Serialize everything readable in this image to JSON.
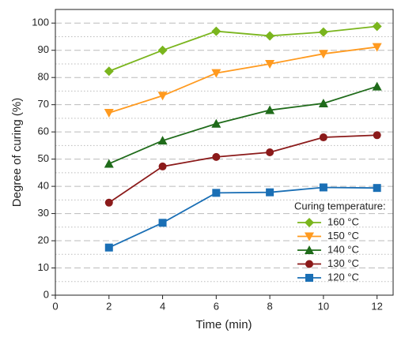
{
  "chart_data": {
    "type": "line",
    "x_label": "Time (min)",
    "y_label": "Degree of curing (%)",
    "x": [
      2,
      4,
      6,
      8,
      10,
      12
    ],
    "xlim": [
      0,
      12.6
    ],
    "xticks": [
      0,
      2,
      4,
      6,
      8,
      10,
      12
    ],
    "ylim": [
      0,
      105
    ],
    "yticks": [
      0,
      10,
      20,
      30,
      40,
      50,
      60,
      70,
      80,
      90,
      100
    ],
    "y_minor_ticks": [
      5,
      15,
      25,
      35,
      45,
      55,
      65,
      75,
      85,
      95
    ],
    "grid": true,
    "legend_title": "Curing temperature:",
    "legend_position": "lower-right",
    "series": [
      {
        "name": "160 °C",
        "color": "#7ab51d",
        "marker": "diamond",
        "values": [
          82.3,
          90,
          97,
          95.3,
          96.7,
          98.8
        ]
      },
      {
        "name": "150 °C",
        "color": "#ff9a1f",
        "marker": "triangle-down",
        "values": [
          67,
          73.3,
          81.6,
          85,
          88.7,
          91.2
        ]
      },
      {
        "name": "140 °C",
        "color": "#1f6b1a",
        "marker": "triangle-up",
        "values": [
          48.3,
          56.8,
          63,
          68,
          70.5,
          76.7
        ]
      },
      {
        "name": "130 °C",
        "color": "#8b1a1a",
        "marker": "circle",
        "values": [
          34,
          47.3,
          50.8,
          52.5,
          58,
          58.8
        ]
      },
      {
        "name": "120 °C",
        "color": "#1a6fb5",
        "marker": "square",
        "values": [
          17.5,
          26.6,
          37.6,
          37.8,
          39.6,
          39.4
        ]
      }
    ]
  }
}
